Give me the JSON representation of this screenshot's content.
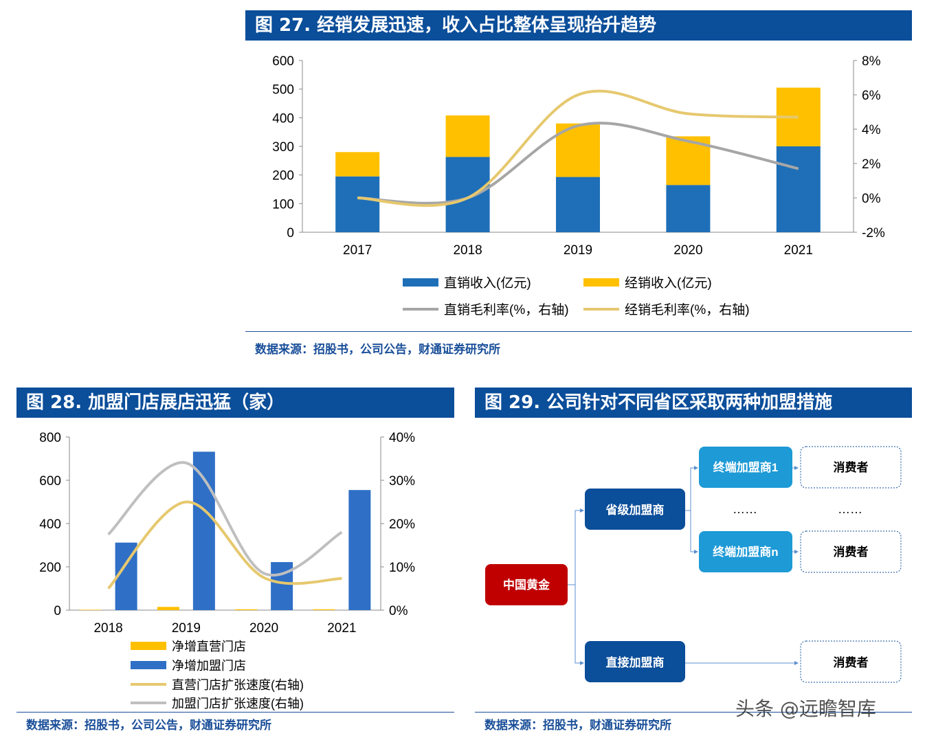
{
  "fig27": {
    "title": "图 27. 经销发展迅速，收入占比整体呈现抬升趋势",
    "source": "数据来源：招股书，公司公告，财通证券研究所"
  },
  "fig28": {
    "title": "图 28. 加盟门店展店迅猛（家）",
    "source": "数据来源：招股书，公司公告，财通证券研究所"
  },
  "fig29": {
    "title": "图 29. 公司针对不同省区采取两种加盟措施",
    "source": "数据来源：招股书，财通证券研究所",
    "root": "中国黄金",
    "provincial": "省级加盟商",
    "direct": "直接加盟商",
    "terminal_1": "终端加盟商1",
    "terminal_n": "终端加盟商n",
    "ellipsis": "……",
    "consumer": "消费者"
  },
  "watermark": "头条 @远瞻智库",
  "chart_data": [
    {
      "type": "bar",
      "stacked": true,
      "categories": [
        "2017",
        "2018",
        "2019",
        "2020",
        "2021"
      ],
      "series": [
        {
          "name": "直销收入(亿元)",
          "values": [
            195,
            263,
            193,
            165,
            300
          ],
          "color": "#1e6fb8"
        },
        {
          "name": "经销收入(亿元)",
          "values": [
            85,
            145,
            187,
            170,
            205
          ],
          "color": "#ffc000"
        }
      ],
      "line_series": [
        {
          "name": "直销毛利率(%，右轴)",
          "values": [
            0.0,
            0.0,
            4.2,
            3.3,
            1.7
          ],
          "color": "#a6a6a6"
        },
        {
          "name": "经销毛利率(%，右轴)",
          "values": [
            0.0,
            0.0,
            6.0,
            4.9,
            4.7
          ],
          "color": "#e6c86e"
        }
      ],
      "ylim": [
        0,
        600
      ],
      "yticks": [
        "0",
        "100",
        "200",
        "300",
        "400",
        "500",
        "600"
      ],
      "y2lim": [
        -2,
        8
      ],
      "y2ticks": [
        "-2%",
        "0%",
        "2%",
        "4%",
        "6%",
        "8%"
      ],
      "legend_position": "bottom"
    },
    {
      "type": "bar",
      "categories": [
        "2018",
        "2019",
        "2020",
        "2021"
      ],
      "series": [
        {
          "name": "净增直营门店",
          "values": [
            2,
            15,
            4,
            4
          ],
          "color": "#ffc000"
        },
        {
          "name": "净增加盟门店",
          "values": [
            312,
            732,
            222,
            555
          ],
          "color": "#2f6fc6"
        }
      ],
      "line_series": [
        {
          "name": "直营门店扩张速度(右轴)",
          "values": [
            5,
            25,
            7.5,
            7.3
          ],
          "color": "#e6c86e"
        },
        {
          "name": "加盟门店扩张速度(右轴)",
          "values": [
            17.5,
            34,
            8.5,
            18
          ],
          "color": "#bfbfbf"
        }
      ],
      "ylim": [
        0,
        800
      ],
      "yticks": [
        "0",
        "200",
        "400",
        "600",
        "800"
      ],
      "y2lim": [
        0,
        40
      ],
      "y2ticks": [
        "0%",
        "10%",
        "20%",
        "30%",
        "40%"
      ],
      "legend_position": "bottom"
    }
  ]
}
